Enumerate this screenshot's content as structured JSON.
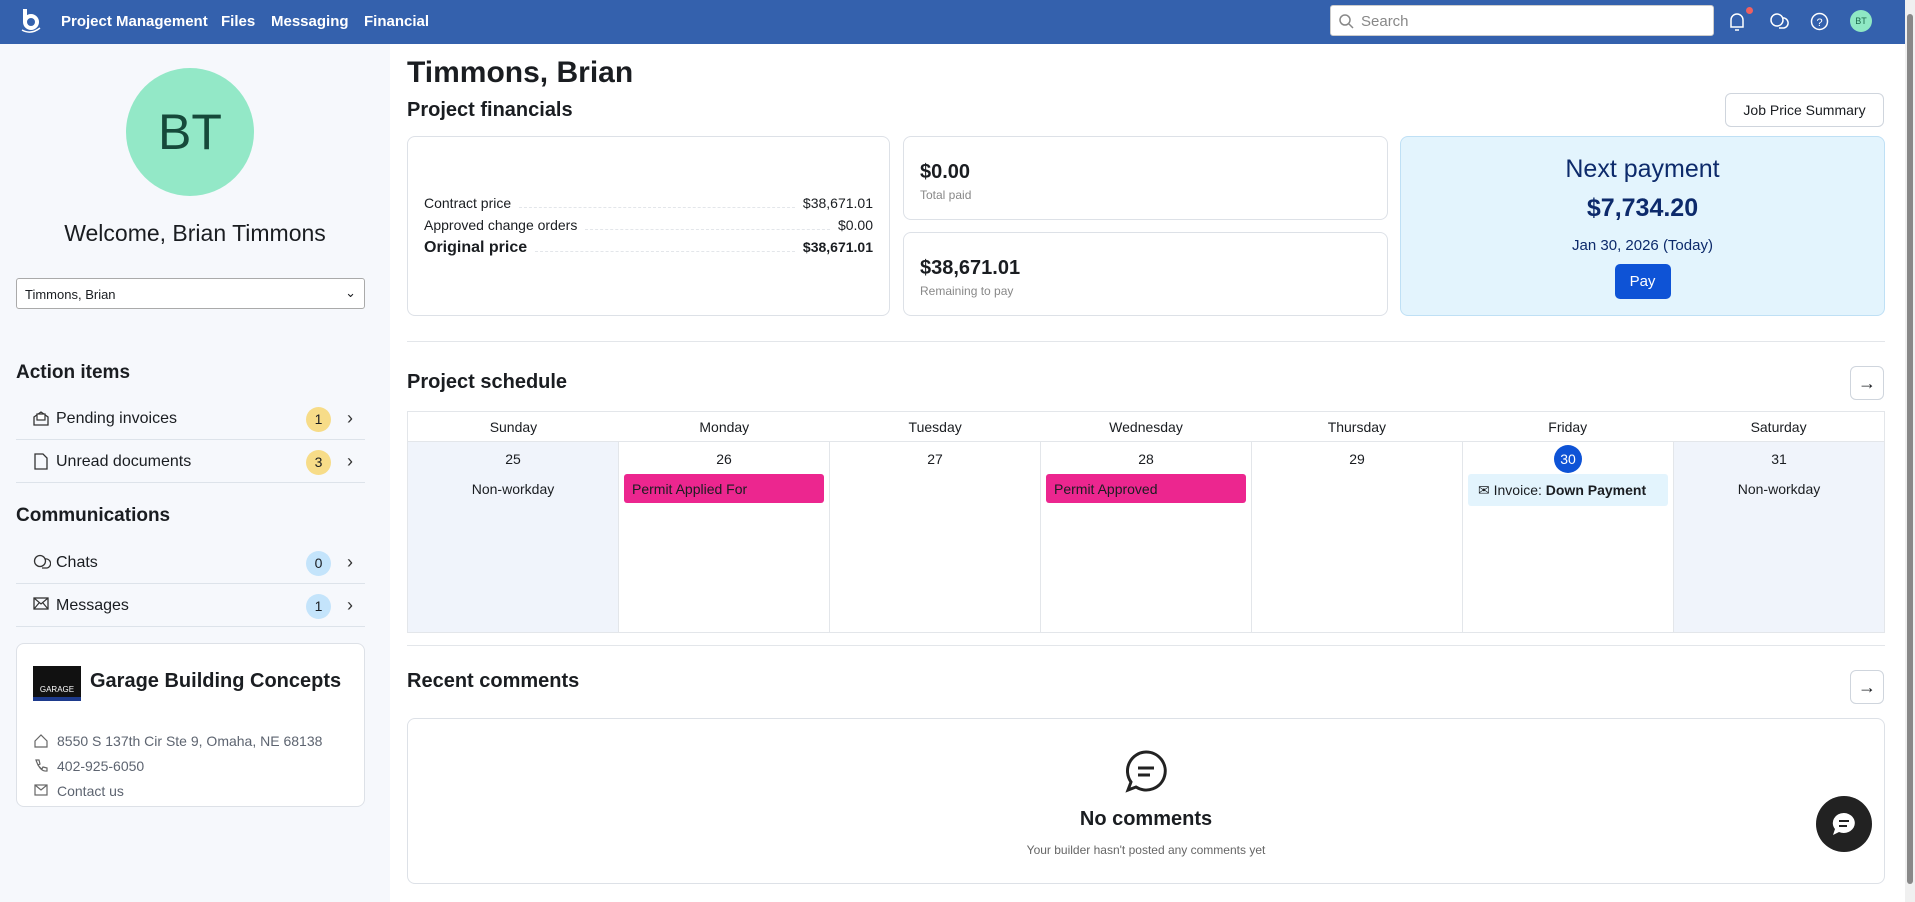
{
  "topbar": {
    "nav": [
      "Project Management",
      "Files",
      "Messaging",
      "Financial"
    ],
    "search_placeholder": "Search",
    "avatar_initials": "BT",
    "has_notification": true
  },
  "sidebar": {
    "avatar_initials": "BT",
    "welcome": "Welcome, Brian Timmons",
    "selected_job": "Timmons, Brian",
    "action_items_title": "Action items",
    "action_items": [
      {
        "label": "Pending invoices",
        "count": "1",
        "icon": "invoice-icon"
      },
      {
        "label": "Unread documents",
        "count": "3",
        "icon": "document-icon"
      }
    ],
    "communications_title": "Communications",
    "communications": [
      {
        "label": "Chats",
        "count": "0",
        "icon": "chat-icon"
      },
      {
        "label": "Messages",
        "count": "1",
        "icon": "mail-icon"
      }
    ],
    "company": {
      "name": "Garage Building Concepts",
      "logo_text": "GARAGE",
      "address": "8550 S 137th Cir Ste 9, Omaha, NE 68138",
      "phone": "402-925-6050",
      "contact": "Contact us"
    }
  },
  "main": {
    "title": "Timmons, Brian",
    "financials_title": "Project financials",
    "job_price_summary": "Job Price Summary",
    "lines": [
      {
        "label": "Contract price",
        "value": "$38,671.01"
      },
      {
        "label": "Approved change orders",
        "value": "$0.00"
      },
      {
        "label": "Original price",
        "value": "$38,671.01"
      }
    ],
    "total_paid": {
      "value": "$0.00",
      "label": "Total paid"
    },
    "remaining": {
      "value": "$38,671.01",
      "label": "Remaining to pay"
    },
    "next_payment": {
      "title": "Next payment",
      "amount": "$7,734.20",
      "date": "Jan 30, 2026 (Today)",
      "pay": "Pay"
    },
    "schedule_title": "Project schedule",
    "days": [
      "Sunday",
      "Monday",
      "Tuesday",
      "Wednesday",
      "Thursday",
      "Friday",
      "Saturday"
    ],
    "dates": [
      "25",
      "26",
      "27",
      "28",
      "29",
      "30",
      "31"
    ],
    "non_workday": "Non-workday",
    "events": {
      "mon": "Permit Applied For",
      "wed": "Permit Approved",
      "fri_prefix": "Invoice:",
      "fri_name": "Down Payment"
    },
    "event_color": "#ec268f",
    "comments_title": "Recent comments",
    "no_comments": "No comments",
    "no_comments_sub": "Your builder hasn't posted any comments yet"
  }
}
